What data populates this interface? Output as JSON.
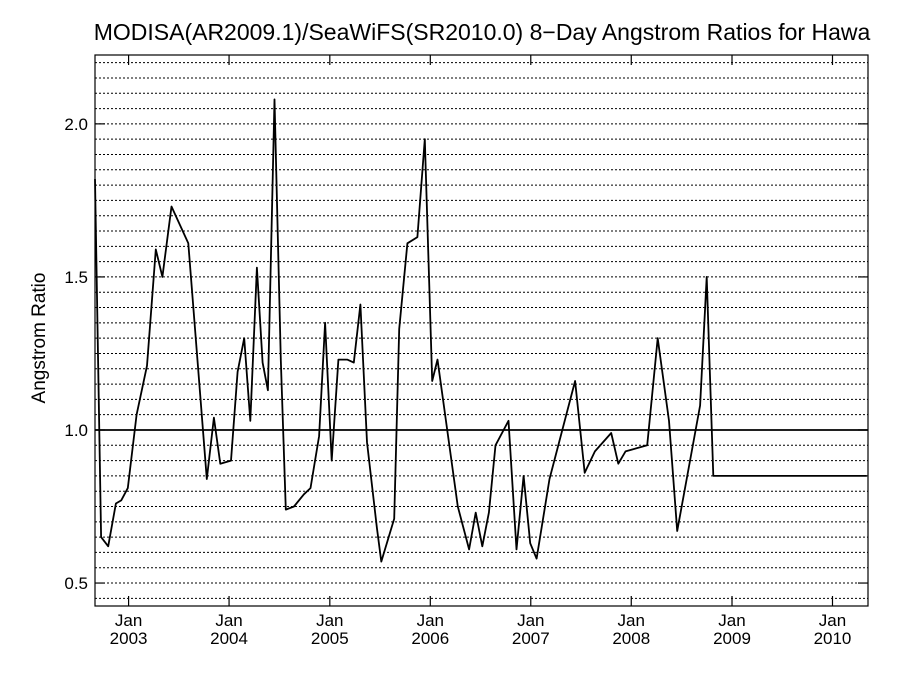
{
  "chart_data": {
    "type": "line",
    "title": "MODISA(AR2009.1)/SeaWiFS(SR2010.0) 8−Day Angstrom Ratios for Hawa",
    "ylabel": "Angstrom Ratio",
    "xlabel": "",
    "xlim": [
      "2002-09-01",
      "2010-05-10"
    ],
    "ylim": [
      0.425,
      2.225
    ],
    "y_ticks": [
      0.5,
      1.0,
      1.5,
      2.0
    ],
    "y_tick_labels": [
      "0.5",
      "1.0",
      "1.5",
      "2.0"
    ],
    "x_ticks": [
      {
        "date": "2003-01-01",
        "month": "Jan",
        "year": "2003"
      },
      {
        "date": "2004-01-01",
        "month": "Jan",
        "year": "2004"
      },
      {
        "date": "2005-01-01",
        "month": "Jan",
        "year": "2005"
      },
      {
        "date": "2006-01-01",
        "month": "Jan",
        "year": "2006"
      },
      {
        "date": "2007-01-01",
        "month": "Jan",
        "year": "2007"
      },
      {
        "date": "2008-01-01",
        "month": "Jan",
        "year": "2008"
      },
      {
        "date": "2009-01-01",
        "month": "Jan",
        "year": "2009"
      },
      {
        "date": "2010-01-01",
        "month": "Jan",
        "year": "2010"
      }
    ],
    "reference_line": 1.0,
    "grid": "horizontal dotted",
    "series": [
      {
        "x": [
          "2002-09-01",
          "2002-09-23",
          "2002-10-19",
          "2002-11-16",
          "2002-12-05",
          "2002-12-29",
          "2003-01-30",
          "2003-03-09",
          "2003-04-10",
          "2003-05-04",
          "2003-06-06",
          "2003-08-06",
          "2003-10-12",
          "2003-11-07",
          "2003-11-30",
          "2004-01-08",
          "2004-02-01",
          "2004-02-25",
          "2004-03-18",
          "2004-04-11",
          "2004-05-02",
          "2004-05-21",
          "2004-06-14",
          "2004-07-07",
          "2004-07-25",
          "2004-08-24",
          "2004-09-29",
          "2004-10-23",
          "2004-11-23",
          "2004-12-15",
          "2005-01-08",
          "2005-02-01",
          "2005-03-05",
          "2005-03-29",
          "2005-04-22",
          "2005-05-16",
          "2005-06-21",
          "2005-07-07",
          "2005-08-23",
          "2005-09-10",
          "2005-10-10",
          "2005-11-15",
          "2005-12-12",
          "2006-01-08",
          "2006-01-27",
          "2006-04-11",
          "2006-05-22",
          "2006-06-15",
          "2006-07-09",
          "2006-08-02",
          "2006-08-26",
          "2006-10-12",
          "2006-11-10",
          "2006-12-06",
          "2006-12-30",
          "2007-01-22",
          "2007-03-10",
          "2007-06-11",
          "2007-07-16",
          "2007-08-22",
          "2007-10-20",
          "2007-11-15",
          "2007-12-11",
          "2008-02-28",
          "2008-04-06",
          "2008-05-17",
          "2008-06-16",
          "2008-09-07",
          "2008-10-01",
          "2008-10-25",
          "2008-11-24",
          "2009-08-13",
          "2009-11-20",
          "2009-12-30",
          "2010-01-23",
          "2010-04-04",
          "2010-05-06"
        ],
        "y": [
          1.82,
          0.65,
          0.62,
          0.76,
          0.77,
          0.81,
          1.05,
          1.21,
          1.59,
          1.5,
          1.73,
          1.61,
          0.84,
          1.04,
          0.89,
          0.9,
          1.19,
          1.3,
          1.03,
          1.53,
          1.22,
          1.13,
          2.08,
          1.23,
          0.74,
          0.75,
          0.79,
          0.81,
          0.98,
          1.35,
          0.9,
          1.23,
          1.23,
          1.22,
          1.41,
          0.96,
          0.68,
          0.57,
          0.71,
          1.33,
          1.61,
          1.63,
          1.95,
          1.16,
          1.23,
          0.75,
          0.61,
          0.73,
          0.62,
          0.73,
          0.95,
          1.03,
          0.61,
          0.85,
          0.63,
          0.58,
          0.84,
          1.16,
          0.86,
          0.93,
          0.99,
          0.89,
          0.93,
          0.95,
          1.3,
          1.03,
          0.67,
          1.08,
          1.5,
          0.85,
          0.85,
          0.85,
          0.85,
          0.85,
          0.85,
          0.85,
          0.85
        ]
      }
    ]
  }
}
